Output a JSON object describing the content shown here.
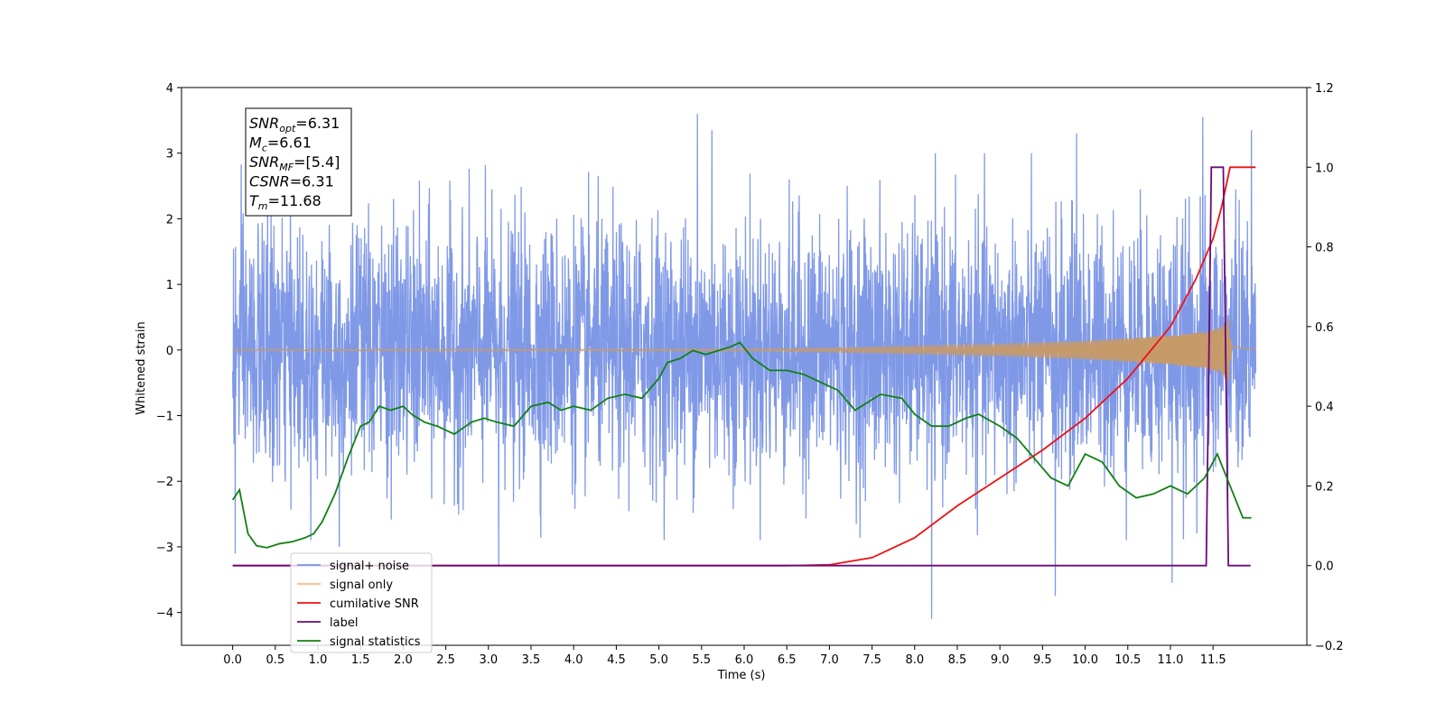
{
  "chart_data": {
    "type": "line",
    "xlabel": "Time (s)",
    "ylabel": "Whitened strain",
    "xlim": [
      -0.6,
      12.6
    ],
    "ylim": [
      -4.5,
      4.0
    ],
    "y2lim": [
      -0.2,
      1.2
    ],
    "x_ticks": [
      0.0,
      0.5,
      1.0,
      1.5,
      2.0,
      2.5,
      3.0,
      3.5,
      4.0,
      4.5,
      5.0,
      5.5,
      6.0,
      6.5,
      7.0,
      7.5,
      8.0,
      8.5,
      9.0,
      9.5,
      10.0,
      10.5,
      11.0,
      11.5
    ],
    "x_tick_labels": [
      "0.0",
      "0.5",
      "1.0",
      "1.5",
      "2.0",
      "2.5",
      "3.0",
      "3.5",
      "4.0",
      "4.5",
      "5.0",
      "5.5",
      "6.0",
      "6.5",
      "7.0",
      "7.5",
      "8.0",
      "8.5",
      "9.0",
      "9.5",
      "10.0",
      "10.5",
      "11.0",
      "11.5"
    ],
    "y_ticks": [
      -4,
      -3,
      -2,
      -1,
      0,
      1,
      2,
      3,
      4
    ],
    "y_tick_labels": [
      "−4",
      "−3",
      "−2",
      "−1",
      "0",
      "1",
      "2",
      "3",
      "4"
    ],
    "y2_ticks": [
      -0.2,
      0.0,
      0.2,
      0.4,
      0.6,
      0.8,
      1.0,
      1.2
    ],
    "y2_tick_labels": [
      "−0.2",
      "0.0",
      "0.2",
      "0.4",
      "0.6",
      "0.8",
      "1.0",
      "1.2"
    ],
    "grid": false,
    "legend_position": "lower-left",
    "noise": {
      "t_start": 0.0,
      "t_end": 12.0,
      "typical_range": [
        -2.4,
        2.4
      ],
      "max_peak": 3.6,
      "min_dip": -4.1,
      "spikes": [
        [
          5.45,
          3.6
        ],
        [
          5.62,
          3.35
        ],
        [
          11.38,
          3.55
        ],
        [
          11.95,
          3.35
        ],
        [
          8.2,
          -4.1
        ],
        [
          9.65,
          -3.75
        ],
        [
          11.02,
          -3.55
        ],
        [
          3.12,
          -3.3
        ],
        [
          0.03,
          -3.1
        ],
        [
          1.25,
          -3.0
        ],
        [
          9.9,
          3.3
        ]
      ]
    },
    "series": [
      {
        "name": "signal+ noise",
        "color": "#7994e6",
        "axis": "left",
        "kind": "noise"
      },
      {
        "name": "signal only",
        "color": "#f9b98a",
        "axis": "left",
        "kind": "chirp",
        "amp_points": [
          [
            0.0,
            0.01
          ],
          [
            6.0,
            0.015
          ],
          [
            7.0,
            0.03
          ],
          [
            8.0,
            0.06
          ],
          [
            9.0,
            0.09
          ],
          [
            10.0,
            0.14
          ],
          [
            10.5,
            0.18
          ],
          [
            11.0,
            0.22
          ],
          [
            11.4,
            0.28
          ],
          [
            11.6,
            0.36
          ],
          [
            11.68,
            0.5
          ],
          [
            11.72,
            0.05
          ],
          [
            12.0,
            0.01
          ]
        ]
      },
      {
        "name": "cumilative SNR",
        "color": "#ee1111",
        "axis": "right",
        "x": [
          0.0,
          6.5,
          7.0,
          7.5,
          8.0,
          8.5,
          9.0,
          9.5,
          10.0,
          10.5,
          11.0,
          11.3,
          11.5,
          11.6,
          11.65,
          11.68,
          11.7,
          12.0
        ],
        "y": [
          0.0,
          0.0,
          0.002,
          0.02,
          0.07,
          0.15,
          0.22,
          0.29,
          0.37,
          0.47,
          0.6,
          0.72,
          0.82,
          0.9,
          0.95,
          0.98,
          1.0,
          1.0
        ]
      },
      {
        "name": "label",
        "color": "#6a0a7a",
        "axis": "right",
        "x": [
          0.0,
          11.42,
          11.48,
          11.62,
          11.68,
          11.94
        ],
        "y": [
          0.0,
          0.0,
          1.0,
          1.0,
          0.0,
          0.0
        ]
      },
      {
        "name": "signal statistics",
        "color": "#138013",
        "axis": "right",
        "x": [
          0.0,
          0.08,
          0.18,
          0.28,
          0.4,
          0.55,
          0.7,
          0.85,
          0.95,
          1.05,
          1.2,
          1.35,
          1.5,
          1.6,
          1.72,
          1.85,
          2.0,
          2.1,
          2.25,
          2.4,
          2.6,
          2.8,
          2.95,
          3.1,
          3.3,
          3.5,
          3.7,
          3.85,
          4.0,
          4.2,
          4.4,
          4.6,
          4.8,
          5.0,
          5.1,
          5.25,
          5.4,
          5.55,
          5.7,
          5.85,
          5.95,
          6.1,
          6.3,
          6.5,
          6.7,
          6.9,
          7.1,
          7.3,
          7.6,
          7.85,
          8.0,
          8.2,
          8.4,
          8.6,
          8.75,
          9.0,
          9.2,
          9.4,
          9.6,
          9.8,
          10.0,
          10.2,
          10.4,
          10.6,
          10.8,
          11.0,
          11.2,
          11.4,
          11.55,
          11.7,
          11.85,
          11.95
        ],
        "y": [
          0.165,
          0.19,
          0.08,
          0.05,
          0.045,
          0.055,
          0.06,
          0.07,
          0.08,
          0.11,
          0.18,
          0.27,
          0.35,
          0.36,
          0.4,
          0.39,
          0.4,
          0.38,
          0.36,
          0.35,
          0.33,
          0.36,
          0.37,
          0.36,
          0.35,
          0.4,
          0.41,
          0.39,
          0.4,
          0.39,
          0.42,
          0.43,
          0.42,
          0.47,
          0.51,
          0.52,
          0.54,
          0.53,
          0.54,
          0.55,
          0.56,
          0.52,
          0.49,
          0.49,
          0.48,
          0.46,
          0.44,
          0.39,
          0.43,
          0.42,
          0.38,
          0.35,
          0.35,
          0.37,
          0.38,
          0.35,
          0.32,
          0.27,
          0.22,
          0.2,
          0.28,
          0.26,
          0.2,
          0.17,
          0.18,
          0.2,
          0.18,
          0.22,
          0.28,
          0.2,
          0.12,
          0.12
        ]
      }
    ],
    "info_box": [
      {
        "main": "SNR",
        "sub": "opt",
        "rest": "=6.31"
      },
      {
        "main": "M",
        "sub": "c",
        "rest": "=6.61"
      },
      {
        "main": "SNR",
        "sub": "MF",
        "rest": "=[5.4]"
      },
      {
        "main": "CSNR",
        "sub": "",
        "rest": "=6.31"
      },
      {
        "main": "T",
        "sub": "m",
        "rest": "=11.68"
      }
    ]
  }
}
